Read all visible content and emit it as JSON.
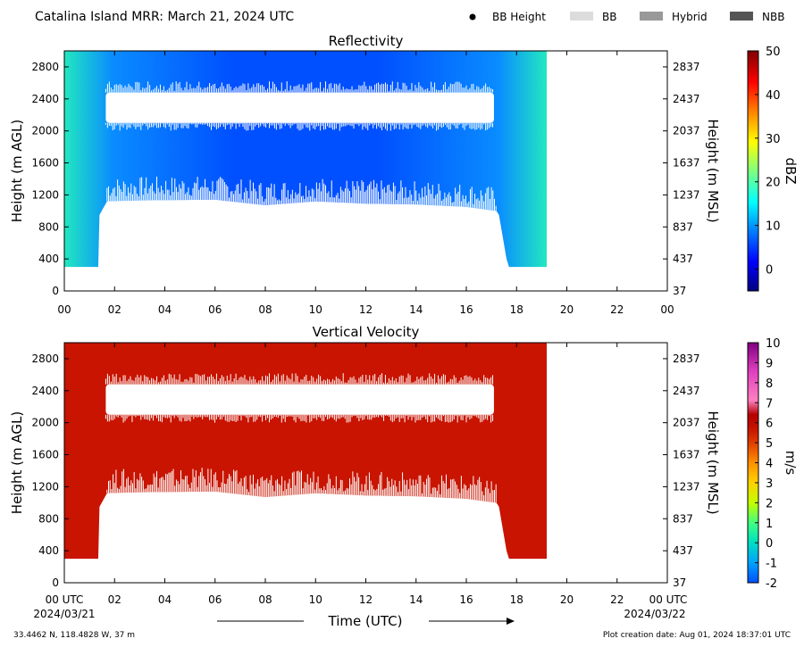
{
  "header": {
    "title": "Catalina Island MRR:  March 21, 2024 UTC",
    "legend": [
      {
        "label": "BB Height",
        "kind": "dot",
        "color": "#000000"
      },
      {
        "label": "BB",
        "kind": "box",
        "color": "#dcdcdc"
      },
      {
        "label": "Hybrid",
        "kind": "box",
        "color": "#999999"
      },
      {
        "label": "NBB",
        "kind": "box",
        "color": "#555555"
      }
    ]
  },
  "footer": {
    "location": "33.4462 N, 118.4828 W, 37 m",
    "creation": "Plot creation date: Aug 01, 2024 18:37:01 UTC",
    "xlabel": "Time (UTC)",
    "start_label": "00 UTC",
    "start_date": "2024/03/21",
    "end_label": "00 UTC",
    "end_date": "2024/03/22"
  },
  "chart_data": [
    {
      "type": "heatmap",
      "title": "Reflectivity",
      "ylabel": "Height (m AGL)",
      "ylabel_right": "Height (m MSL)",
      "colorbar_label": "dBZ",
      "x_ticks": [
        "00",
        "02",
        "04",
        "06",
        "08",
        "10",
        "12",
        "14",
        "16",
        "18",
        "20",
        "22",
        "00"
      ],
      "xlim": [
        0,
        24
      ],
      "ylim": [
        0,
        3000
      ],
      "y_ticks": [
        0,
        400,
        800,
        1200,
        1600,
        2000,
        2400,
        2800
      ],
      "y_ticks_right": [
        37,
        437,
        837,
        1237,
        1637,
        2037,
        2437,
        2837
      ],
      "colorbar_ticks": [
        0,
        10,
        20,
        30,
        40,
        50
      ],
      "colorbar_range": [
        -5,
        50
      ],
      "colors": [
        "#00007f",
        "#0000ff",
        "#007fff",
        "#00ffff",
        "#7fff7f",
        "#ffff00",
        "#ff7f00",
        "#ff0000",
        "#7f0000"
      ],
      "data_extent_hours": [
        0,
        19.2
      ],
      "echo_base_m": [
        [
          0,
          300
        ],
        [
          1.35,
          300
        ],
        [
          1.4,
          950
        ],
        [
          1.7,
          1120
        ],
        [
          3,
          1130
        ],
        [
          6,
          1140
        ],
        [
          8,
          1070
        ],
        [
          10,
          1120
        ],
        [
          12,
          1090
        ],
        [
          14,
          1080
        ],
        [
          16,
          1050
        ],
        [
          17.2,
          1000
        ],
        [
          17.3,
          950
        ],
        [
          17.6,
          400
        ],
        [
          17.7,
          300
        ],
        [
          19.2,
          300
        ]
      ],
      "gap_layer_m": [
        2100,
        2480
      ],
      "gap_layer_hours": [
        1.65,
        17.1
      ]
    },
    {
      "type": "heatmap",
      "title": "Vertical Velocity",
      "ylabel": "Height (m AGL)",
      "ylabel_right": "Height (m MSL)",
      "colorbar_label": "m/s",
      "x_ticks": [
        "00",
        "02",
        "04",
        "06",
        "08",
        "10",
        "12",
        "14",
        "16",
        "18",
        "20",
        "22",
        "00"
      ],
      "xlim": [
        0,
        24
      ],
      "ylim": [
        0,
        3000
      ],
      "y_ticks": [
        0,
        400,
        800,
        1200,
        1600,
        2000,
        2400,
        2800
      ],
      "y_ticks_right": [
        37,
        437,
        837,
        1237,
        1637,
        2037,
        2437,
        2837
      ],
      "colorbar_ticks": [
        -2,
        -1,
        0,
        1,
        2,
        3,
        4,
        5,
        6,
        7,
        8,
        9,
        10
      ],
      "colorbar_range": [
        -2,
        10
      ],
      "colors": [
        "#0050ff",
        "#00a0ff",
        "#00e0c0",
        "#40ff80",
        "#c0ff00",
        "#ffd000",
        "#ff9000",
        "#e04000",
        "#c81400",
        "#b40000",
        "#ff80c0",
        "#e040c0",
        "#800080"
      ],
      "fill_color": "#c81400",
      "data_extent_hours": [
        0,
        19.2
      ],
      "echo_base_m": [
        [
          0,
          300
        ],
        [
          1.35,
          300
        ],
        [
          1.4,
          950
        ],
        [
          1.7,
          1120
        ],
        [
          3,
          1130
        ],
        [
          6,
          1140
        ],
        [
          8,
          1070
        ],
        [
          10,
          1120
        ],
        [
          12,
          1090
        ],
        [
          14,
          1080
        ],
        [
          16,
          1050
        ],
        [
          17.2,
          1000
        ],
        [
          17.3,
          950
        ],
        [
          17.6,
          400
        ],
        [
          17.7,
          300
        ],
        [
          19.2,
          300
        ]
      ],
      "gap_layer_m": [
        2100,
        2480
      ],
      "gap_layer_hours": [
        1.65,
        17.1
      ]
    }
  ]
}
